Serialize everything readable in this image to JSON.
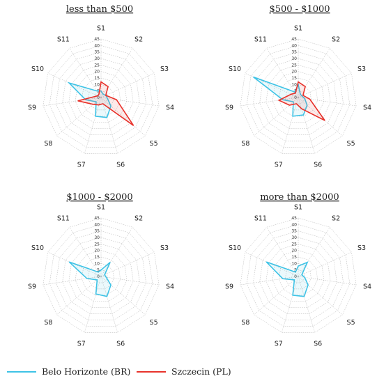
{
  "colors": {
    "belo": "#3ec3e6",
    "szczecin": "#e8322b"
  },
  "legend": [
    {
      "label": "Belo Horizonte (BR)",
      "color": "#3ec3e6"
    },
    {
      "label": "Szczecin (PL)",
      "color": "#e8322b"
    }
  ],
  "chart_data": [
    {
      "type": "radar",
      "title": "less than $500",
      "axes": [
        "S1",
        "S2",
        "S3",
        "S4",
        "S5",
        "S6",
        "S7",
        "S8",
        "S9",
        "S10",
        "S11"
      ],
      "ticks": [
        "45",
        "40",
        "35",
        "30",
        "25",
        "20",
        "15",
        "10",
        "5",
        "0"
      ],
      "rlim": [
        0,
        45
      ],
      "series": [
        {
          "name": "Belo Horizonte (BR)",
          "values": [
            5,
            3,
            4,
            5,
            10,
            16,
            15,
            5,
            12,
            27,
            6
          ]
        },
        {
          "name": "Szczecin (PL)",
          "values": [
            12,
            10,
            4,
            12,
            33,
            5,
            6,
            8,
            18,
            3,
            3
          ]
        }
      ]
    },
    {
      "type": "radar",
      "title": "$500 - $1000",
      "axes": [
        "S1",
        "S2",
        "S3",
        "S4",
        "S5",
        "S6",
        "S7",
        "S8",
        "S9",
        "S10",
        "S11"
      ],
      "ticks": [
        "45",
        "40",
        "35",
        "30",
        "25",
        "20",
        "15",
        "10",
        "5",
        "0"
      ],
      "rlim": [
        0,
        45
      ],
      "series": [
        {
          "name": "Belo Horizonte (BR)",
          "values": [
            10,
            3,
            3,
            5,
            9,
            14,
            15,
            5,
            12,
            38,
            5
          ]
        },
        {
          "name": "Szczecin (PL)",
          "values": [
            12,
            10,
            4,
            9,
            27,
            9,
            5,
            9,
            15,
            6,
            4
          ]
        }
      ]
    },
    {
      "type": "radar",
      "title": "$1000 - $2000",
      "axes": [
        "S1",
        "S2",
        "S3",
        "S4",
        "S5",
        "S6",
        "S7",
        "S8",
        "S9",
        "S10",
        "S11"
      ],
      "ticks": [
        "45",
        "40",
        "35",
        "30",
        "25",
        "20",
        "15",
        "10",
        "5",
        "0"
      ],
      "rlim": [
        0,
        45
      ],
      "series": [
        {
          "name": "Belo Horizonte (BR)",
          "values": [
            5,
            13,
            3,
            4,
            10,
            16,
            14,
            4,
            11,
            27,
            4
          ]
        }
      ]
    },
    {
      "type": "radar",
      "title": "more than $2000",
      "axes": [
        "S1",
        "S2",
        "S3",
        "S4",
        "S5",
        "S6",
        "S7",
        "S8",
        "S9",
        "S10",
        "S11"
      ],
      "ticks": [
        "45",
        "40",
        "35",
        "30",
        "25",
        "20",
        "15",
        "10",
        "5",
        "0"
      ],
      "rlim": [
        0,
        45
      ],
      "series": [
        {
          "name": "Belo Horizonte (BR)",
          "values": [
            8,
            13,
            3,
            5,
            10,
            16,
            15,
            4,
            12,
            27,
            4
          ]
        }
      ]
    }
  ]
}
